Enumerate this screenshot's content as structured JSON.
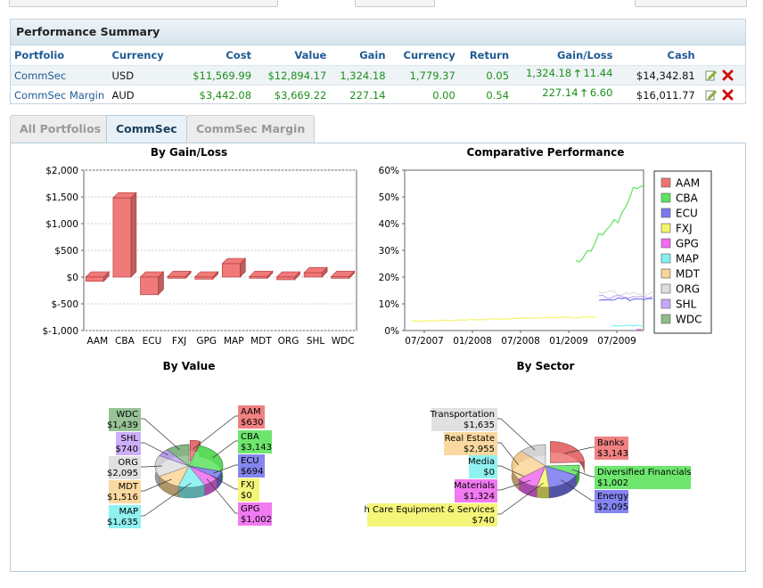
{
  "summary": {
    "title": "Performance Summary",
    "headers": [
      "Portfolio",
      "Currency",
      "Cost",
      "Value",
      "Gain",
      "Currency",
      "Return",
      "Gain/Loss",
      "Cash"
    ],
    "rows": [
      {
        "portfolio": "CommSec",
        "currency": "USD",
        "cost": "$11,569.99",
        "value": "$12,894.17",
        "gain": "1,324.18",
        "currency_gain": "1,779.37",
        "return": "0.05",
        "gainloss": "1,324.18",
        "gainloss_pct": "11.44",
        "cash": "$14,342.81"
      },
      {
        "portfolio": "CommSec Margin",
        "currency": "AUD",
        "cost": "$3,442.08",
        "value": "$3,669.22",
        "gain": "227.14",
        "currency_gain": "0.00",
        "return": "0.54",
        "gainloss": "227.14",
        "gainloss_pct": "6.60",
        "cash": "$16,011.77"
      }
    ],
    "icons": {
      "edit": "edit-icon",
      "delete": "delete-icon",
      "up": "up-arrow-icon"
    }
  },
  "tabs": [
    {
      "label": "All Portfolios",
      "active": false
    },
    {
      "label": "CommSec",
      "active": true
    },
    {
      "label": "CommSec Margin",
      "active": false
    }
  ],
  "chart_data": [
    {
      "type": "bar",
      "title": "By Gain/Loss",
      "categories": [
        "AAM",
        "CBA",
        "ECU",
        "FXJ",
        "GPG",
        "MAP",
        "MDT",
        "ORG",
        "SHL",
        "WDC"
      ],
      "values": [
        -80,
        1480,
        -330,
        10,
        -40,
        250,
        10,
        -50,
        80,
        10
      ],
      "ylim": [
        -1000,
        2000
      ],
      "yticks": [
        "$2,000",
        "$1,500",
        "$1,000",
        "$500",
        "$0",
        "$-500",
        "$-1,000"
      ],
      "color": "#f07a7a"
    },
    {
      "type": "line",
      "title": "Comparative Performance",
      "yticks": [
        "60%",
        "50%",
        "40%",
        "30%",
        "20%",
        "10%",
        "0%"
      ],
      "xticks": [
        "07/2007",
        "01/2008",
        "07/2008",
        "01/2009",
        "07/2009"
      ],
      "ylim": [
        0,
        60
      ],
      "legend": [
        {
          "name": "AAM",
          "color": "#f07474"
        },
        {
          "name": "CBA",
          "color": "#5ee35e"
        },
        {
          "name": "ECU",
          "color": "#7878ee"
        },
        {
          "name": "FXJ",
          "color": "#f4f46c"
        },
        {
          "name": "GPG",
          "color": "#f06cf0"
        },
        {
          "name": "MAP",
          "color": "#84f0f0"
        },
        {
          "name": "MDT",
          "color": "#fad596"
        },
        {
          "name": "ORG",
          "color": "#dedede"
        },
        {
          "name": "SHL",
          "color": "#c6a6f8"
        },
        {
          "name": "WDC",
          "color": "#8cbc8c"
        }
      ]
    },
    {
      "type": "pie",
      "title": "By Value",
      "slices": [
        {
          "label": "AAM",
          "value": "$630",
          "color": "#f07474"
        },
        {
          "label": "CBA",
          "value": "$3,143",
          "color": "#5ee35e"
        },
        {
          "label": "ECU",
          "value": "$694",
          "color": "#7878ee"
        },
        {
          "label": "FXJ",
          "value": "$0",
          "color": "#f4f46c"
        },
        {
          "label": "GPG",
          "value": "$1,002",
          "color": "#f06cf0"
        },
        {
          "label": "MAP",
          "value": "$1,635",
          "color": "#84f0f0"
        },
        {
          "label": "MDT",
          "value": "$1,516",
          "color": "#fad596"
        },
        {
          "label": "ORG",
          "value": "$2,095",
          "color": "#dedede"
        },
        {
          "label": "SHL",
          "value": "$740",
          "color": "#c6a6f8"
        },
        {
          "label": "WDC",
          "value": "$1,439",
          "color": "#8cbc8c"
        }
      ]
    },
    {
      "type": "pie",
      "title": "By Sector",
      "slices": [
        {
          "label": "Banks",
          "value": "$3,143",
          "color": "#f07474"
        },
        {
          "label": "Diversified Financials",
          "value": "$1,002",
          "color": "#5ee35e"
        },
        {
          "label": "Energy",
          "value": "$2,095",
          "color": "#7878ee"
        },
        {
          "label": "h Care Equipment & Services",
          "value": "$740",
          "color": "#f4f46c"
        },
        {
          "label": "Materials",
          "value": "$1,324",
          "color": "#f06cf0"
        },
        {
          "label": "Media",
          "value": "$0",
          "color": "#84f0f0"
        },
        {
          "label": "Real Estate",
          "value": "$2,955",
          "color": "#fad596"
        },
        {
          "label": "Transportation",
          "value": "$1,635",
          "color": "#dedede"
        }
      ]
    }
  ]
}
